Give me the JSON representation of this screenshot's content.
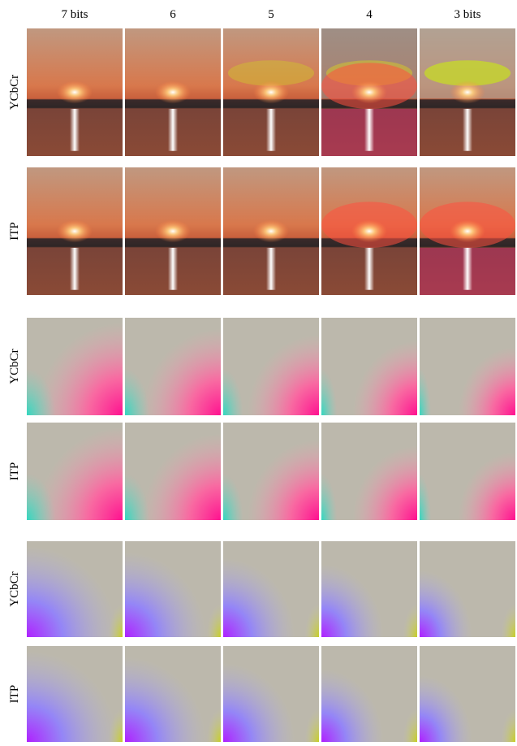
{
  "header": {
    "columns": [
      "7 bits",
      "6",
      "5",
      "4",
      "3 bits"
    ]
  },
  "rows": [
    {
      "label": "YCbCr"
    },
    {
      "label": "ITP"
    },
    {
      "label": "YCbCr"
    },
    {
      "label": "ITP"
    },
    {
      "label": "YCbCr"
    },
    {
      "label": "ITP"
    }
  ]
}
